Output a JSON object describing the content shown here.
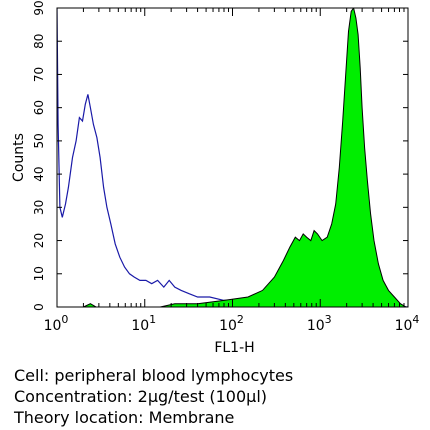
{
  "chart_data": {
    "type": "area",
    "xlabel": "FL1-H",
    "ylabel": "Counts",
    "x_scale": "log",
    "xlim": [
      1,
      10000
    ],
    "ylim": [
      0,
      90
    ],
    "x_ticks": [
      {
        "value": 1,
        "base": "10",
        "exp": "0"
      },
      {
        "value": 10,
        "base": "10",
        "exp": "1"
      },
      {
        "value": 100,
        "base": "10",
        "exp": "2"
      },
      {
        "value": 1000,
        "base": "10",
        "exp": "3"
      },
      {
        "value": 10000,
        "base": "10",
        "exp": "4"
      }
    ],
    "y_ticks": [
      "0",
      "10",
      "20",
      "30",
      "40",
      "50",
      "60",
      "70",
      "80",
      "90"
    ],
    "grid": false,
    "series": [
      {
        "style": "outline",
        "color": "#1a1aa8",
        "points": [
          [
            1.0,
            90
          ],
          [
            1.03,
            55
          ],
          [
            1.08,
            30
          ],
          [
            1.15,
            27
          ],
          [
            1.25,
            31
          ],
          [
            1.35,
            36
          ],
          [
            1.5,
            45
          ],
          [
            1.65,
            50
          ],
          [
            1.8,
            57
          ],
          [
            1.95,
            56
          ],
          [
            2.1,
            61
          ],
          [
            2.25,
            64
          ],
          [
            2.4,
            60
          ],
          [
            2.6,
            55
          ],
          [
            2.85,
            51
          ],
          [
            3.1,
            45
          ],
          [
            3.4,
            36
          ],
          [
            3.7,
            30
          ],
          [
            4.1,
            25
          ],
          [
            4.6,
            19
          ],
          [
            5.2,
            15
          ],
          [
            5.9,
            12
          ],
          [
            6.7,
            10
          ],
          [
            7.6,
            9
          ],
          [
            8.8,
            8
          ],
          [
            10.3,
            8
          ],
          [
            12.0,
            7
          ],
          [
            14.0,
            8
          ],
          [
            16.5,
            6
          ],
          [
            19.0,
            8
          ],
          [
            22.0,
            6
          ],
          [
            26.0,
            5
          ],
          [
            32.0,
            4
          ],
          [
            40.0,
            3
          ],
          [
            55.0,
            3
          ],
          [
            80.0,
            2
          ],
          [
            130,
            2
          ],
          [
            250,
            2
          ],
          [
            600,
            1
          ],
          [
            2000,
            1
          ],
          [
            10000,
            0
          ]
        ]
      },
      {
        "style": "filled",
        "color": "#00ee00",
        "points": [
          [
            1.0,
            0
          ],
          [
            2.0,
            0
          ],
          [
            2.4,
            1
          ],
          [
            2.8,
            0
          ],
          [
            15,
            0
          ],
          [
            22,
            1
          ],
          [
            40,
            1
          ],
          [
            80,
            2
          ],
          [
            150,
            3
          ],
          [
            220,
            5
          ],
          [
            300,
            9
          ],
          [
            380,
            14
          ],
          [
            450,
            18
          ],
          [
            520,
            21
          ],
          [
            580,
            20
          ],
          [
            640,
            22
          ],
          [
            700,
            21
          ],
          [
            780,
            20
          ],
          [
            850,
            23
          ],
          [
            930,
            22
          ],
          [
            1050,
            20
          ],
          [
            1200,
            21
          ],
          [
            1350,
            25
          ],
          [
            1500,
            31
          ],
          [
            1650,
            42
          ],
          [
            1800,
            56
          ],
          [
            1950,
            70
          ],
          [
            2100,
            83
          ],
          [
            2250,
            89
          ],
          [
            2400,
            90
          ],
          [
            2550,
            87
          ],
          [
            2700,
            82
          ],
          [
            2850,
            72
          ],
          [
            3000,
            60
          ],
          [
            3200,
            48
          ],
          [
            3450,
            38
          ],
          [
            3750,
            28
          ],
          [
            4100,
            20
          ],
          [
            4600,
            13
          ],
          [
            5200,
            8
          ],
          [
            6000,
            5
          ],
          [
            7000,
            3
          ],
          [
            8200,
            1
          ],
          [
            9500,
            0
          ],
          [
            10000,
            0
          ]
        ]
      }
    ]
  },
  "caption": {
    "line1": "Cell: peripheral blood lymphocytes",
    "line2": "Concentration: 2μg/test (100μl)",
    "line3": "Theory location: Membrane"
  }
}
